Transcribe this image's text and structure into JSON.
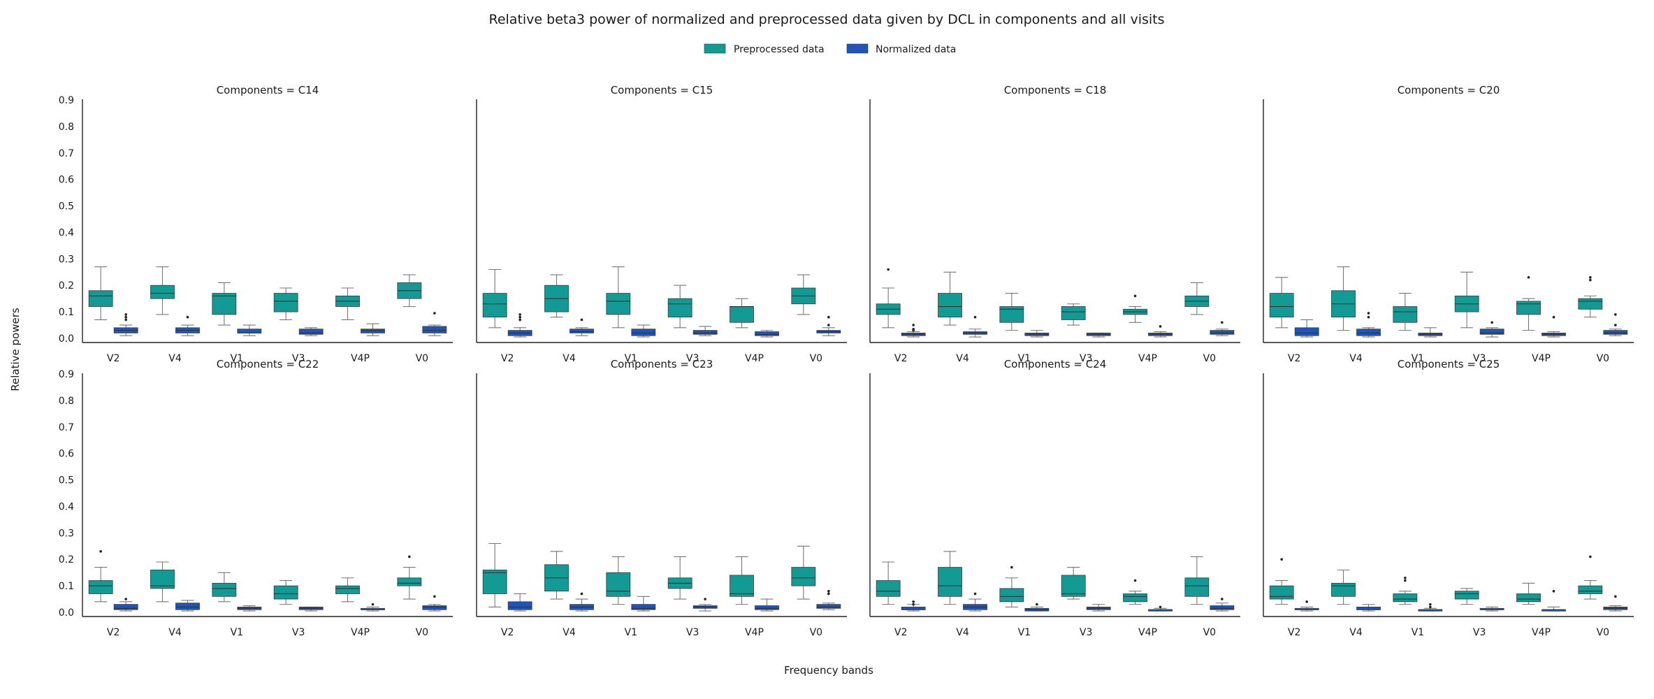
{
  "figure": {
    "title": "Relative beta3 power of normalized and preprocessed data given by DCL in components and all visits",
    "xlabel": "Frequency bands",
    "ylabel": "Relative powers"
  },
  "legend": {
    "placement": "top-center",
    "entries": [
      {
        "label": "Preprocessed data",
        "color": "#149a95"
      },
      {
        "label": "Normalized data",
        "color": "#1f55b8"
      }
    ]
  },
  "chart_data": {
    "type": "box",
    "facet_rows": 2,
    "facet_cols": 4,
    "ylim": [
      0.0,
      0.9
    ],
    "yticks": [
      "0.0",
      "0.1",
      "0.2",
      "0.3",
      "0.4",
      "0.5",
      "0.6",
      "0.7",
      "0.8",
      "0.9"
    ],
    "categories": [
      "V2",
      "V4",
      "V1",
      "V3",
      "V4P",
      "V0"
    ],
    "series": [
      "Preprocessed data",
      "Normalized data"
    ],
    "panels": [
      {
        "title": "Components = C14",
        "boxes": [
          [
            [
              0.07,
              0.12,
              0.16,
              0.18,
              0.27
            ],
            []
          ],
          [
            [
              0.01,
              0.02,
              0.03,
              0.04,
              0.05
            ],
            [
              0.07,
              0.08,
              0.09
            ]
          ],
          [
            [
              0.09,
              0.15,
              0.17,
              0.2,
              0.27
            ],
            []
          ],
          [
            [
              0.01,
              0.02,
              0.03,
              0.04,
              0.05
            ],
            [
              0.08
            ]
          ],
          [
            [
              0.05,
              0.09,
              0.16,
              0.17,
              0.21
            ],
            []
          ],
          [
            [
              0.01,
              0.02,
              0.02,
              0.035,
              0.05
            ],
            []
          ],
          [
            [
              0.07,
              0.1,
              0.14,
              0.17,
              0.19
            ],
            []
          ],
          [
            [
              0.01,
              0.015,
              0.02,
              0.035,
              0.04
            ],
            []
          ],
          [
            [
              0.07,
              0.12,
              0.14,
              0.16,
              0.19
            ],
            []
          ],
          [
            [
              0.01,
              0.02,
              0.03,
              0.035,
              0.055
            ],
            []
          ],
          [
            [
              0.12,
              0.15,
              0.18,
              0.21,
              0.24
            ],
            []
          ],
          [
            [
              0.01,
              0.02,
              0.03,
              0.045,
              0.05
            ],
            [
              0.095
            ]
          ]
        ]
      },
      {
        "title": "Components = C15",
        "boxes": [
          [
            [
              0.04,
              0.08,
              0.13,
              0.17,
              0.26
            ],
            []
          ],
          [
            [
              0.005,
              0.01,
              0.02,
              0.03,
              0.04
            ],
            [
              0.07,
              0.08,
              0.09
            ]
          ],
          [
            [
              0.08,
              0.1,
              0.15,
              0.2,
              0.24
            ],
            []
          ],
          [
            [
              0.01,
              0.02,
              0.025,
              0.035,
              0.04
            ],
            [
              0.07
            ]
          ],
          [
            [
              0.04,
              0.09,
              0.14,
              0.17,
              0.27
            ],
            []
          ],
          [
            [
              0.005,
              0.01,
              0.02,
              0.035,
              0.05
            ],
            []
          ],
          [
            [
              0.04,
              0.08,
              0.13,
              0.15,
              0.2
            ],
            []
          ],
          [
            [
              0.01,
              0.015,
              0.02,
              0.03,
              0.045
            ],
            []
          ],
          [
            [
              0.04,
              0.06,
              0.12,
              0.12,
              0.15
            ],
            []
          ],
          [
            [
              0.005,
              0.01,
              0.015,
              0.025,
              0.03
            ],
            []
          ],
          [
            [
              0.09,
              0.13,
              0.16,
              0.19,
              0.24
            ],
            []
          ],
          [
            [
              0.01,
              0.02,
              0.025,
              0.03,
              0.04
            ],
            [
              0.05,
              0.08
            ]
          ]
        ]
      },
      {
        "title": "Components = C18",
        "boxes": [
          [
            [
              0.04,
              0.09,
              0.11,
              0.13,
              0.19
            ],
            [
              0.26
            ]
          ],
          [
            [
              0.005,
              0.01,
              0.015,
              0.02,
              0.025
            ],
            [
              0.03,
              0.035,
              0.05
            ]
          ],
          [
            [
              0.05,
              0.08,
              0.12,
              0.17,
              0.25
            ],
            []
          ],
          [
            [
              0.005,
              0.015,
              0.02,
              0.025,
              0.035
            ],
            [
              0.08
            ]
          ],
          [
            [
              0.03,
              0.06,
              0.11,
              0.12,
              0.17
            ],
            []
          ],
          [
            [
              0.005,
              0.01,
              0.015,
              0.02,
              0.03
            ],
            []
          ],
          [
            [
              0.05,
              0.07,
              0.1,
              0.12,
              0.13
            ],
            []
          ],
          [
            [
              0.005,
              0.01,
              0.015,
              0.02,
              0.02
            ],
            []
          ],
          [
            [
              0.06,
              0.09,
              0.1,
              0.11,
              0.12
            ],
            [
              0.16
            ]
          ],
          [
            [
              0.005,
              0.01,
              0.015,
              0.02,
              0.025
            ],
            [
              0.045
            ]
          ],
          [
            [
              0.09,
              0.12,
              0.14,
              0.16,
              0.21
            ],
            []
          ],
          [
            [
              0.01,
              0.015,
              0.02,
              0.03,
              0.035
            ],
            [
              0.06
            ]
          ]
        ]
      },
      {
        "title": "Components = C20",
        "boxes": [
          [
            [
              0.04,
              0.08,
              0.12,
              0.17,
              0.23
            ],
            []
          ],
          [
            [
              0.005,
              0.01,
              0.02,
              0.04,
              0.07
            ],
            []
          ],
          [
            [
              0.03,
              0.08,
              0.13,
              0.18,
              0.27
            ],
            []
          ],
          [
            [
              0.005,
              0.01,
              0.02,
              0.035,
              0.04
            ],
            [
              0.08,
              0.095
            ]
          ],
          [
            [
              0.03,
              0.06,
              0.1,
              0.12,
              0.17
            ],
            []
          ],
          [
            [
              0.005,
              0.01,
              0.015,
              0.02,
              0.04
            ],
            []
          ],
          [
            [
              0.04,
              0.1,
              0.13,
              0.16,
              0.25
            ],
            []
          ],
          [
            [
              0.005,
              0.015,
              0.02,
              0.035,
              0.04
            ],
            [
              0.06
            ]
          ],
          [
            [
              0.03,
              0.09,
              0.13,
              0.14,
              0.15
            ],
            [
              0.23
            ]
          ],
          [
            [
              0.005,
              0.01,
              0.015,
              0.02,
              0.025
            ],
            [
              0.08
            ]
          ],
          [
            [
              0.08,
              0.11,
              0.14,
              0.15,
              0.16
            ],
            [
              0.22,
              0.23
            ]
          ],
          [
            [
              0.01,
              0.015,
              0.02,
              0.03,
              0.035
            ],
            [
              0.05,
              0.09
            ]
          ]
        ]
      },
      {
        "title": "Components = C22",
        "boxes": [
          [
            [
              0.04,
              0.07,
              0.1,
              0.12,
              0.17
            ],
            [
              0.23
            ]
          ],
          [
            [
              0.005,
              0.01,
              0.015,
              0.03,
              0.04
            ],
            [
              0.05
            ]
          ],
          [
            [
              0.04,
              0.09,
              0.1,
              0.16,
              0.19
            ],
            []
          ],
          [
            [
              0.005,
              0.01,
              0.02,
              0.035,
              0.045
            ],
            []
          ],
          [
            [
              0.04,
              0.06,
              0.09,
              0.11,
              0.15
            ],
            []
          ],
          [
            [
              0.005,
              0.01,
              0.015,
              0.02,
              0.025
            ],
            []
          ],
          [
            [
              0.03,
              0.05,
              0.07,
              0.1,
              0.12
            ],
            []
          ],
          [
            [
              0.005,
              0.01,
              0.015,
              0.02,
              0.02
            ],
            []
          ],
          [
            [
              0.04,
              0.07,
              0.09,
              0.1,
              0.13
            ],
            []
          ],
          [
            [
              0.005,
              0.01,
              0.01,
              0.015,
              0.02
            ],
            [
              0.03
            ]
          ],
          [
            [
              0.05,
              0.1,
              0.11,
              0.13,
              0.17
            ],
            [
              0.21
            ]
          ],
          [
            [
              0.005,
              0.01,
              0.02,
              0.025,
              0.03
            ],
            [
              0.06
            ]
          ]
        ]
      },
      {
        "title": "Components = C23",
        "boxes": [
          [
            [
              0.02,
              0.07,
              0.15,
              0.16,
              0.26
            ],
            []
          ],
          [
            [
              0.005,
              0.01,
              0.02,
              0.04,
              0.07
            ],
            []
          ],
          [
            [
              0.05,
              0.08,
              0.13,
              0.18,
              0.23
            ],
            []
          ],
          [
            [
              0.005,
              0.01,
              0.02,
              0.03,
              0.05
            ],
            [
              0.07
            ]
          ],
          [
            [
              0.03,
              0.06,
              0.08,
              0.15,
              0.21
            ],
            []
          ],
          [
            [
              0.005,
              0.01,
              0.015,
              0.03,
              0.06
            ],
            []
          ],
          [
            [
              0.05,
              0.09,
              0.11,
              0.13,
              0.21
            ],
            []
          ],
          [
            [
              0.005,
              0.015,
              0.02,
              0.025,
              0.03
            ],
            [
              0.05
            ]
          ],
          [
            [
              0.03,
              0.06,
              0.07,
              0.14,
              0.21
            ],
            []
          ],
          [
            [
              0.005,
              0.01,
              0.015,
              0.025,
              0.05
            ],
            []
          ],
          [
            [
              0.05,
              0.1,
              0.13,
              0.17,
              0.25
            ],
            []
          ],
          [
            [
              0.01,
              0.015,
              0.02,
              0.03,
              0.035
            ],
            [
              0.07,
              0.08
            ]
          ]
        ]
      },
      {
        "title": "Components = C24",
        "boxes": [
          [
            [
              0.03,
              0.06,
              0.08,
              0.12,
              0.19
            ],
            []
          ],
          [
            [
              0.005,
              0.01,
              0.01,
              0.02,
              0.03
            ],
            [
              0.03,
              0.04
            ]
          ],
          [
            [
              0.03,
              0.06,
              0.1,
              0.17,
              0.23
            ],
            []
          ],
          [
            [
              0.005,
              0.01,
              0.02,
              0.03,
              0.05
            ],
            [
              0.07
            ]
          ],
          [
            [
              0.02,
              0.04,
              0.06,
              0.09,
              0.13
            ],
            [
              0.17
            ]
          ],
          [
            [
              0.005,
              0.005,
              0.01,
              0.015,
              0.02
            ],
            [
              0.03
            ]
          ],
          [
            [
              0.05,
              0.06,
              0.07,
              0.14,
              0.17
            ],
            []
          ],
          [
            [
              0.005,
              0.01,
              0.015,
              0.02,
              0.03
            ],
            []
          ],
          [
            [
              0.03,
              0.04,
              0.06,
              0.07,
              0.08
            ],
            [
              0.12
            ]
          ],
          [
            [
              0.005,
              0.005,
              0.01,
              0.01,
              0.015
            ],
            [
              0.02
            ]
          ],
          [
            [
              0.03,
              0.06,
              0.1,
              0.13,
              0.21
            ],
            []
          ],
          [
            [
              0.005,
              0.01,
              0.015,
              0.025,
              0.035
            ],
            [
              0.05
            ]
          ]
        ]
      },
      {
        "title": "Components = C25",
        "boxes": [
          [
            [
              0.03,
              0.05,
              0.06,
              0.1,
              0.12
            ],
            [
              0.2
            ]
          ],
          [
            [
              0.005,
              0.01,
              0.01,
              0.015,
              0.02
            ],
            [
              0.04
            ]
          ],
          [
            [
              0.03,
              0.06,
              0.1,
              0.11,
              0.16
            ],
            []
          ],
          [
            [
              0.005,
              0.01,
              0.01,
              0.02,
              0.03
            ],
            []
          ],
          [
            [
              0.03,
              0.04,
              0.05,
              0.07,
              0.08
            ],
            [
              0.12,
              0.13
            ]
          ],
          [
            [
              0.005,
              0.005,
              0.01,
              0.01,
              0.015
            ],
            [
              0.02,
              0.03
            ]
          ],
          [
            [
              0.03,
              0.05,
              0.07,
              0.08,
              0.09
            ],
            []
          ],
          [
            [
              0.005,
              0.01,
              0.01,
              0.015,
              0.02
            ],
            []
          ],
          [
            [
              0.03,
              0.04,
              0.05,
              0.07,
              0.11
            ],
            []
          ],
          [
            [
              0.005,
              0.005,
              0.01,
              0.01,
              0.02
            ],
            [
              0.08
            ]
          ],
          [
            [
              0.05,
              0.07,
              0.08,
              0.1,
              0.12
            ],
            [
              0.21
            ]
          ],
          [
            [
              0.005,
              0.01,
              0.015,
              0.02,
              0.025
            ],
            [
              0.06
            ]
          ]
        ]
      }
    ]
  }
}
